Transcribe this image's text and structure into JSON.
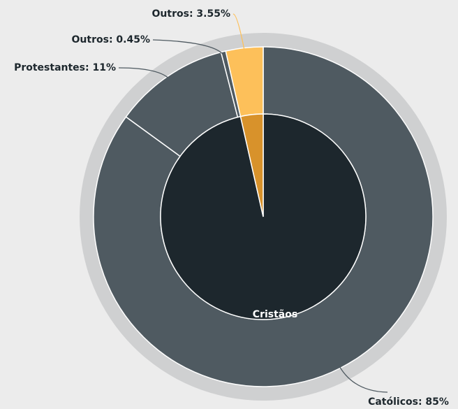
{
  "chart_data": {
    "type": "sunburst",
    "inner": {
      "categories": [
        "Cristãos",
        null
      ],
      "values": [
        96.45,
        3.55
      ],
      "colors": [
        "#1d272d",
        "#d8922b"
      ]
    },
    "outer": {
      "values": [
        85,
        11,
        0.45,
        3.55
      ],
      "value_labels": [
        "Católicos: 85%",
        "Protestantes: 11%",
        "Outros: 0.45%",
        "Outros: 3.55%"
      ],
      "colors": [
        "#4f5a61",
        "#4f5a61",
        "#4f5a61",
        "#fdc05a"
      ]
    }
  }
}
